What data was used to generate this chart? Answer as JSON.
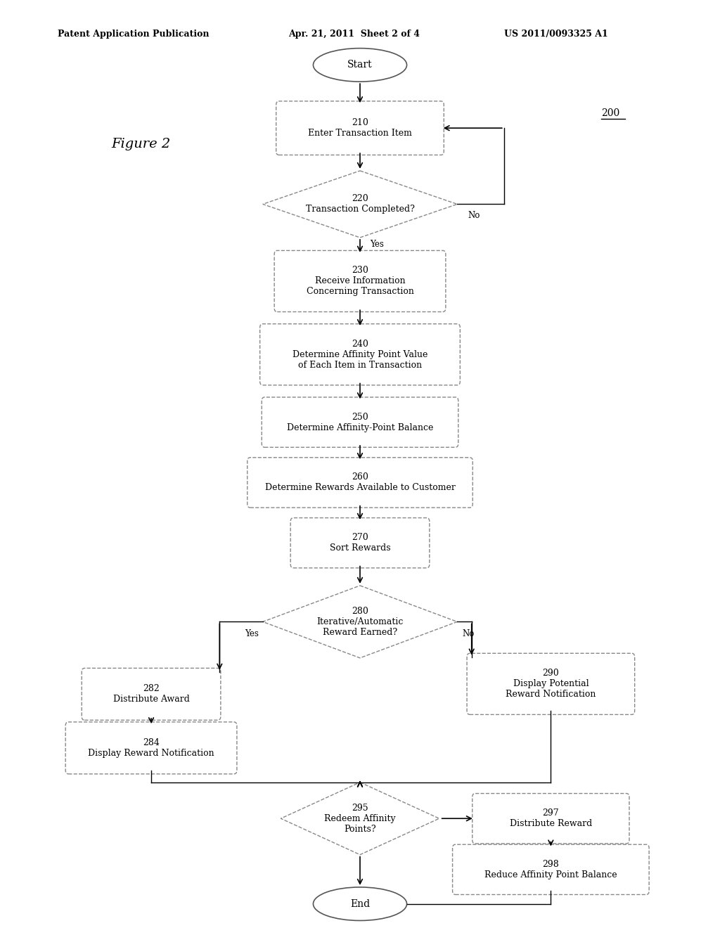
{
  "header_left": "Patent Application Publication",
  "header_center": "Apr. 21, 2011  Sheet 2 of 4",
  "header_right": "US 2011/0093325 A1",
  "figure_label": "Figure 2",
  "ref_number": "200",
  "background_color": "#ffffff",
  "text_color": "#000000",
  "box_edge_color": "#888888",
  "box_fill_color": "#ffffff"
}
